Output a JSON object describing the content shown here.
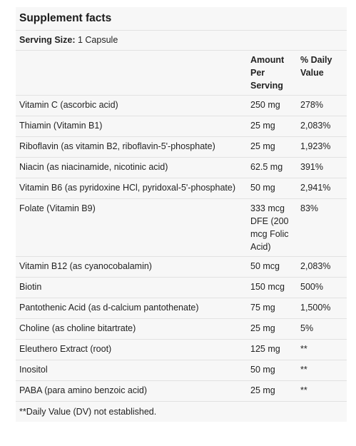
{
  "title": "Supplement facts",
  "serving": {
    "label": "Serving Size:",
    "value": "1 Capsule"
  },
  "columns": {
    "ingredient": "",
    "amount": "Amount Per Serving",
    "dv": "% Daily Value"
  },
  "rows": [
    {
      "name": "Vitamin C (ascorbic acid)",
      "amount": "250 mg",
      "dv": "278%"
    },
    {
      "name": "Thiamin (Vitamin B1)",
      "amount": "25 mg",
      "dv": "2,083%"
    },
    {
      "name": "Riboflavin (as vitamin B2, riboflavin-5'-phosphate)",
      "amount": "25 mg",
      "dv": "1,923%"
    },
    {
      "name": "Niacin (as niacinamide, nicotinic acid)",
      "amount": "62.5 mg",
      "dv": "391%"
    },
    {
      "name": "Vitamin B6 (as pyridoxine HCl, pyridoxal-5'-phosphate)",
      "amount": "50 mg",
      "dv": "2,941%"
    },
    {
      "name": "Folate (Vitamin B9)",
      "amount": "333 mcg DFE (200 mcg Folic Acid)",
      "dv": "83%"
    },
    {
      "name": "Vitamin B12 (as cyanocobalamin)",
      "amount": "50 mcg",
      "dv": "2,083%"
    },
    {
      "name": "Biotin",
      "amount": "150 mcg",
      "dv": "500%"
    },
    {
      "name": "Pantothenic Acid (as d-calcium pantothenate)",
      "amount": "75 mg",
      "dv": "1,500%"
    },
    {
      "name": "Choline (as choline bitartrate)",
      "amount": "25 mg",
      "dv": "5%"
    },
    {
      "name": "Eleuthero Extract (root)",
      "amount": "125 mg",
      "dv": "**"
    },
    {
      "name": "Inositol",
      "amount": "50 mg",
      "dv": "**"
    },
    {
      "name": "PABA (para amino benzoic acid)",
      "amount": "25 mg",
      "dv": "**"
    }
  ],
  "footnote": "**Daily Value (DV) not established."
}
